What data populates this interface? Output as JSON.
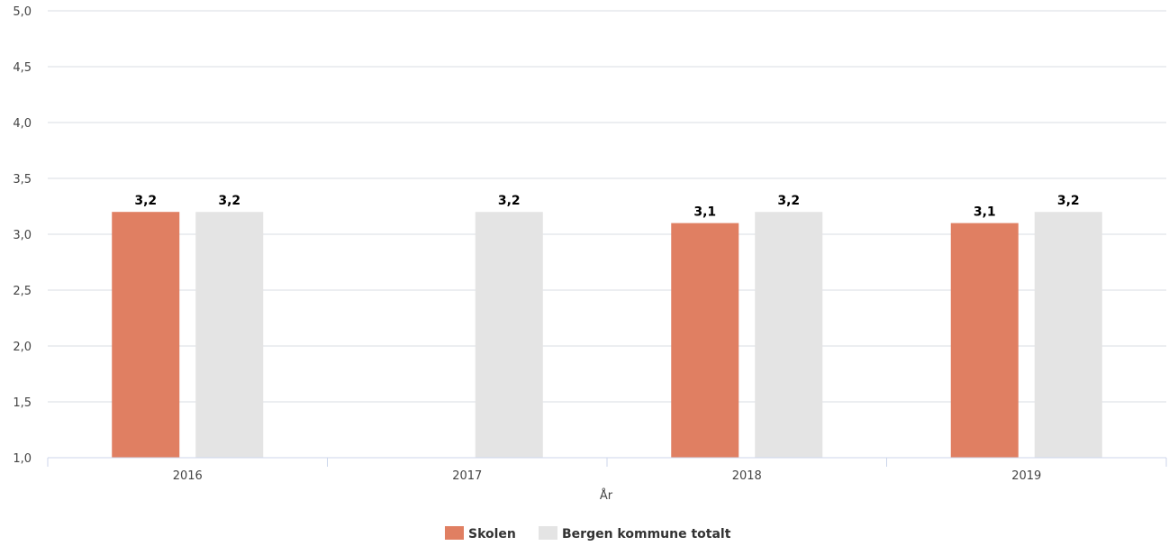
{
  "chart_data": {
    "type": "bar",
    "categories": [
      "2016",
      "2017",
      "2018",
      "2019"
    ],
    "series": [
      {
        "name": "Skolen",
        "color": "#e07f62",
        "values": [
          3.2,
          null,
          3.1,
          3.1
        ],
        "labels": [
          "3,2",
          "",
          "3,1",
          "3,1"
        ]
      },
      {
        "name": "Bergen kommune totalt",
        "color": "#e4e4e4",
        "values": [
          3.2,
          3.2,
          3.2,
          3.2
        ],
        "labels": [
          "3,2",
          "3,2",
          "3,2",
          "3,2"
        ]
      }
    ],
    "xlabel": "År",
    "ylabel": "",
    "ylim": [
      1.0,
      5.0
    ],
    "yticks": [
      "1,0",
      "1,5",
      "2,0",
      "2,5",
      "3,0",
      "3,5",
      "4,0",
      "4,5",
      "5,0"
    ],
    "grid": true,
    "legend_position": "bottom-center"
  }
}
